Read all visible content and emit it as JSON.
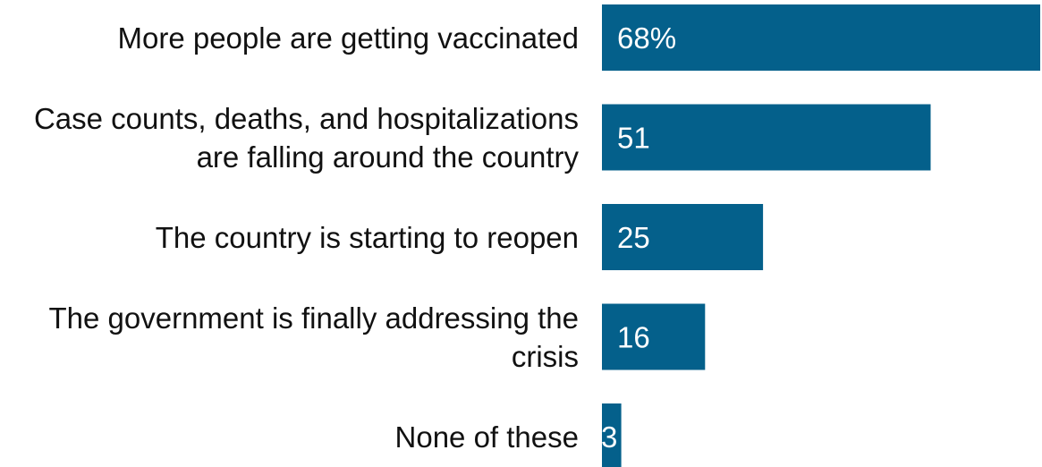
{
  "chart_data": {
    "type": "bar",
    "orientation": "horizontal",
    "title": "",
    "xlabel": "",
    "ylabel": "",
    "categories": [
      [
        "More people are getting vaccinated"
      ],
      [
        "Case counts, deaths, and hospitalizations",
        "are falling around the country"
      ],
      [
        "The country is starting to reopen"
      ],
      [
        "The government is finally addressing the",
        "crisis"
      ],
      [
        "None of these"
      ]
    ],
    "values": [
      68,
      51,
      25,
      16,
      3
    ],
    "value_labels": [
      "68%",
      "51",
      "25",
      "16",
      "3"
    ],
    "xlim": [
      0,
      68
    ],
    "grid": false,
    "legend": "none",
    "bar_color": "#04608b"
  }
}
